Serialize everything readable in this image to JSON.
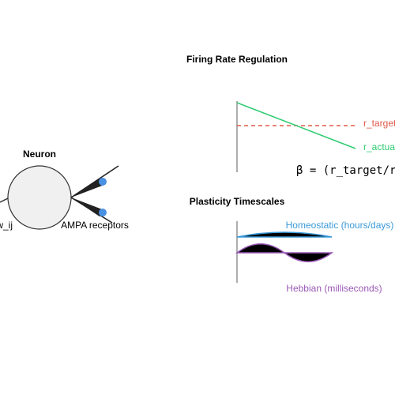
{
  "neuron": {
    "title": "Neuron",
    "input_label": "w_ij",
    "receptor_label": "AMPA receptors"
  },
  "firing_rate": {
    "title": "Firing Rate Regulation",
    "target_label": "r_target",
    "actual_label": "r_actual",
    "formula": "β = (r_target/r_actual)"
  },
  "plasticity": {
    "title": "Plasticity Timescales",
    "homeostatic_label": "Homeostatic (hours/days)",
    "hebbian_label": "Hebbian (milliseconds)"
  }
}
